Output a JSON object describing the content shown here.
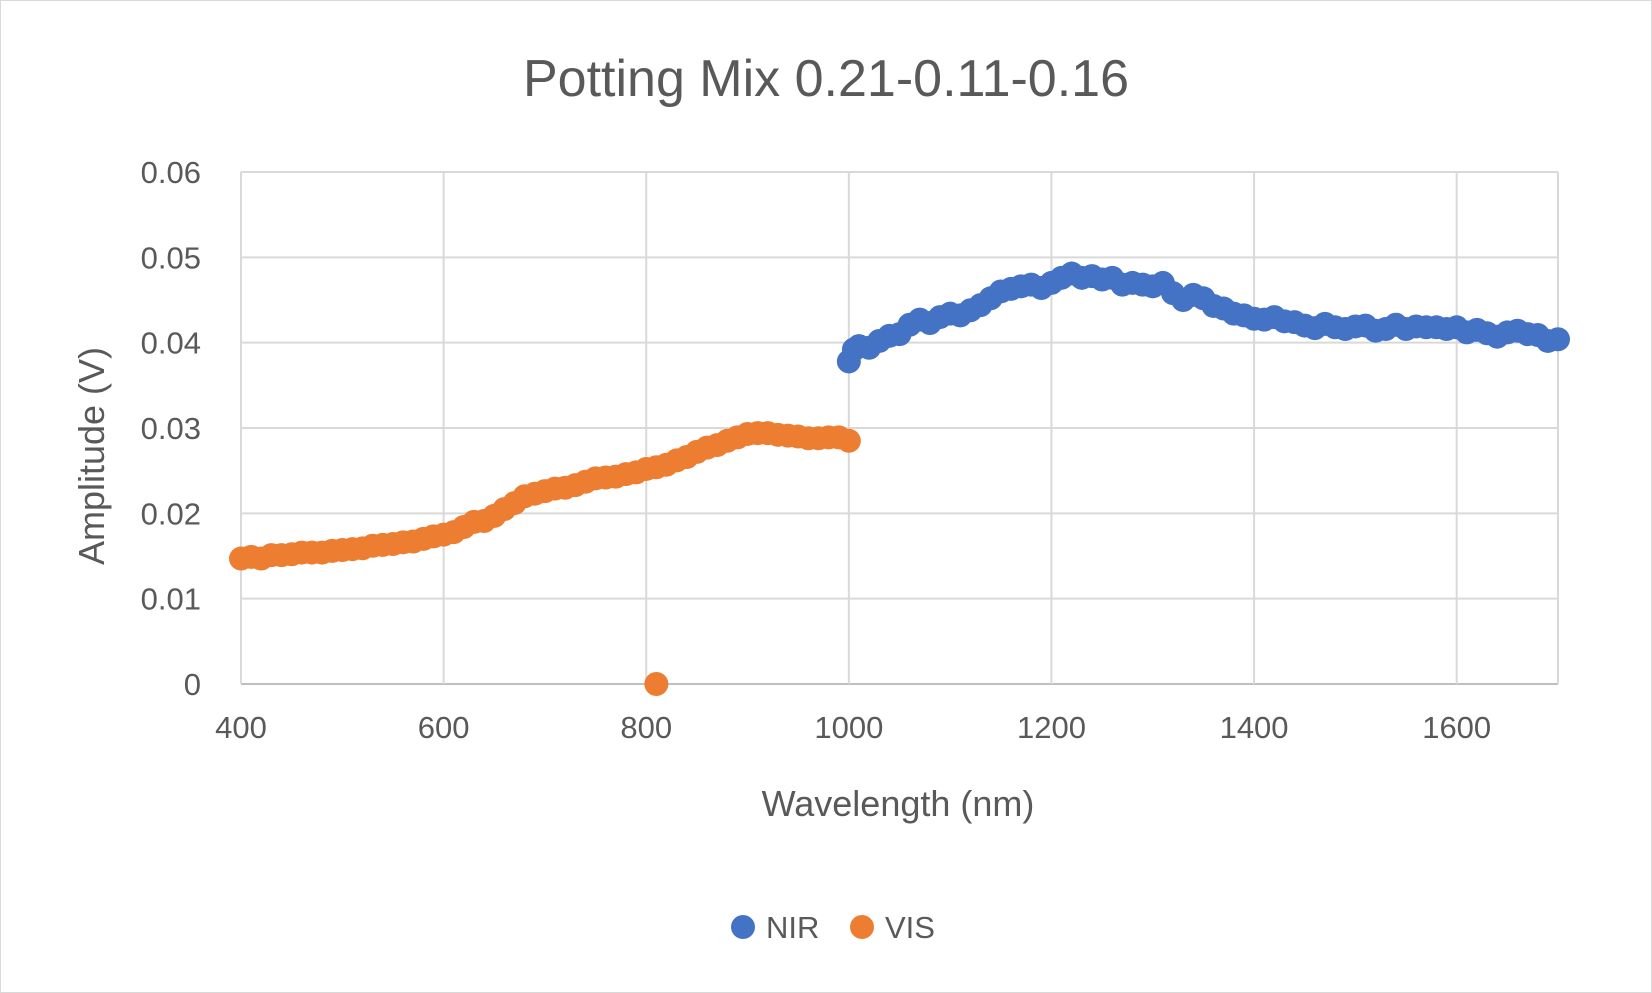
{
  "chart_data": {
    "type": "scatter",
    "title": "Potting Mix 0.21-0.11-0.16",
    "xlabel": "Wavelength (nm)",
    "ylabel": "Amplitude (V)",
    "xlim": [
      400,
      1700
    ],
    "ylim": [
      0,
      0.06
    ],
    "x_ticks": [
      400,
      600,
      800,
      1000,
      1200,
      1400,
      1600
    ],
    "y_ticks": [
      0,
      0.01,
      0.02,
      0.03,
      0.04,
      0.05,
      0.06
    ],
    "x_tick_labels": [
      "400",
      "600",
      "800",
      "1000",
      "1200",
      "1400",
      "1600"
    ],
    "y_tick_labels": [
      "0",
      "0.01",
      "0.02",
      "0.03",
      "0.04",
      "0.05",
      "0.06"
    ],
    "grid": true,
    "legend_position": "bottom",
    "series": [
      {
        "name": "NIR",
        "color": "#4472c4",
        "points": [
          [
            1000,
            0.0378
          ],
          [
            1005,
            0.0392
          ],
          [
            1010,
            0.0396
          ],
          [
            1020,
            0.0394
          ],
          [
            1030,
            0.0402
          ],
          [
            1040,
            0.0408
          ],
          [
            1050,
            0.041
          ],
          [
            1060,
            0.0421
          ],
          [
            1070,
            0.0427
          ],
          [
            1080,
            0.0423
          ],
          [
            1090,
            0.043
          ],
          [
            1100,
            0.0434
          ],
          [
            1110,
            0.0432
          ],
          [
            1120,
            0.0438
          ],
          [
            1130,
            0.0444
          ],
          [
            1140,
            0.0452
          ],
          [
            1150,
            0.046
          ],
          [
            1160,
            0.0463
          ],
          [
            1170,
            0.0466
          ],
          [
            1180,
            0.0468
          ],
          [
            1190,
            0.0464
          ],
          [
            1200,
            0.047
          ],
          [
            1210,
            0.0476
          ],
          [
            1220,
            0.0481
          ],
          [
            1230,
            0.0476
          ],
          [
            1240,
            0.0478
          ],
          [
            1250,
            0.0474
          ],
          [
            1260,
            0.0476
          ],
          [
            1270,
            0.0468
          ],
          [
            1280,
            0.047
          ],
          [
            1290,
            0.0468
          ],
          [
            1300,
            0.0466
          ],
          [
            1310,
            0.047
          ],
          [
            1320,
            0.0458
          ],
          [
            1330,
            0.045
          ],
          [
            1340,
            0.0456
          ],
          [
            1350,
            0.0452
          ],
          [
            1360,
            0.0443
          ],
          [
            1370,
            0.044
          ],
          [
            1380,
            0.0434
          ],
          [
            1390,
            0.0432
          ],
          [
            1400,
            0.0428
          ],
          [
            1410,
            0.0427
          ],
          [
            1420,
            0.043
          ],
          [
            1430,
            0.0425
          ],
          [
            1440,
            0.0424
          ],
          [
            1450,
            0.042
          ],
          [
            1460,
            0.0417
          ],
          [
            1470,
            0.0422
          ],
          [
            1480,
            0.0418
          ],
          [
            1490,
            0.0416
          ],
          [
            1500,
            0.0419
          ],
          [
            1510,
            0.042
          ],
          [
            1520,
            0.0414
          ],
          [
            1530,
            0.0416
          ],
          [
            1540,
            0.0421
          ],
          [
            1550,
            0.0416
          ],
          [
            1560,
            0.0419
          ],
          [
            1570,
            0.0418
          ],
          [
            1580,
            0.0418
          ],
          [
            1590,
            0.0416
          ],
          [
            1600,
            0.0418
          ],
          [
            1610,
            0.0412
          ],
          [
            1620,
            0.0415
          ],
          [
            1630,
            0.0411
          ],
          [
            1640,
            0.0407
          ],
          [
            1650,
            0.0412
          ],
          [
            1660,
            0.0414
          ],
          [
            1670,
            0.041
          ],
          [
            1680,
            0.0409
          ],
          [
            1690,
            0.0402
          ],
          [
            1700,
            0.0404
          ]
        ]
      },
      {
        "name": "VIS",
        "color": "#ed7d31",
        "points": [
          [
            400,
            0.0147
          ],
          [
            410,
            0.0149
          ],
          [
            420,
            0.0147
          ],
          [
            430,
            0.0151
          ],
          [
            440,
            0.0151
          ],
          [
            450,
            0.0152
          ],
          [
            460,
            0.0154
          ],
          [
            470,
            0.0154
          ],
          [
            480,
            0.0154
          ],
          [
            490,
            0.0156
          ],
          [
            500,
            0.0157
          ],
          [
            510,
            0.0158
          ],
          [
            520,
            0.0159
          ],
          [
            530,
            0.0162
          ],
          [
            540,
            0.0163
          ],
          [
            550,
            0.0164
          ],
          [
            560,
            0.0166
          ],
          [
            570,
            0.0167
          ],
          [
            580,
            0.017
          ],
          [
            590,
            0.0173
          ],
          [
            600,
            0.0175
          ],
          [
            610,
            0.0178
          ],
          [
            620,
            0.0184
          ],
          [
            630,
            0.019
          ],
          [
            640,
            0.0191
          ],
          [
            650,
            0.0197
          ],
          [
            660,
            0.0205
          ],
          [
            670,
            0.0212
          ],
          [
            680,
            0.022
          ],
          [
            690,
            0.0223
          ],
          [
            700,
            0.0226
          ],
          [
            710,
            0.0229
          ],
          [
            720,
            0.023
          ],
          [
            730,
            0.0233
          ],
          [
            740,
            0.0237
          ],
          [
            750,
            0.0241
          ],
          [
            760,
            0.0242
          ],
          [
            770,
            0.0243
          ],
          [
            780,
            0.0246
          ],
          [
            790,
            0.0248
          ],
          [
            800,
            0.0252
          ],
          [
            810,
            0.0254
          ],
          [
            820,
            0.0257
          ],
          [
            830,
            0.0262
          ],
          [
            840,
            0.0266
          ],
          [
            850,
            0.0272
          ],
          [
            860,
            0.0277
          ],
          [
            870,
            0.028
          ],
          [
            880,
            0.0285
          ],
          [
            890,
            0.0289
          ],
          [
            900,
            0.0293
          ],
          [
            910,
            0.0294
          ],
          [
            920,
            0.0294
          ],
          [
            930,
            0.0292
          ],
          [
            940,
            0.0291
          ],
          [
            950,
            0.029
          ],
          [
            960,
            0.0288
          ],
          [
            970,
            0.0288
          ],
          [
            980,
            0.0289
          ],
          [
            990,
            0.0289
          ],
          [
            1000,
            0.0285
          ],
          [
            810,
            0.0
          ]
        ]
      }
    ]
  }
}
